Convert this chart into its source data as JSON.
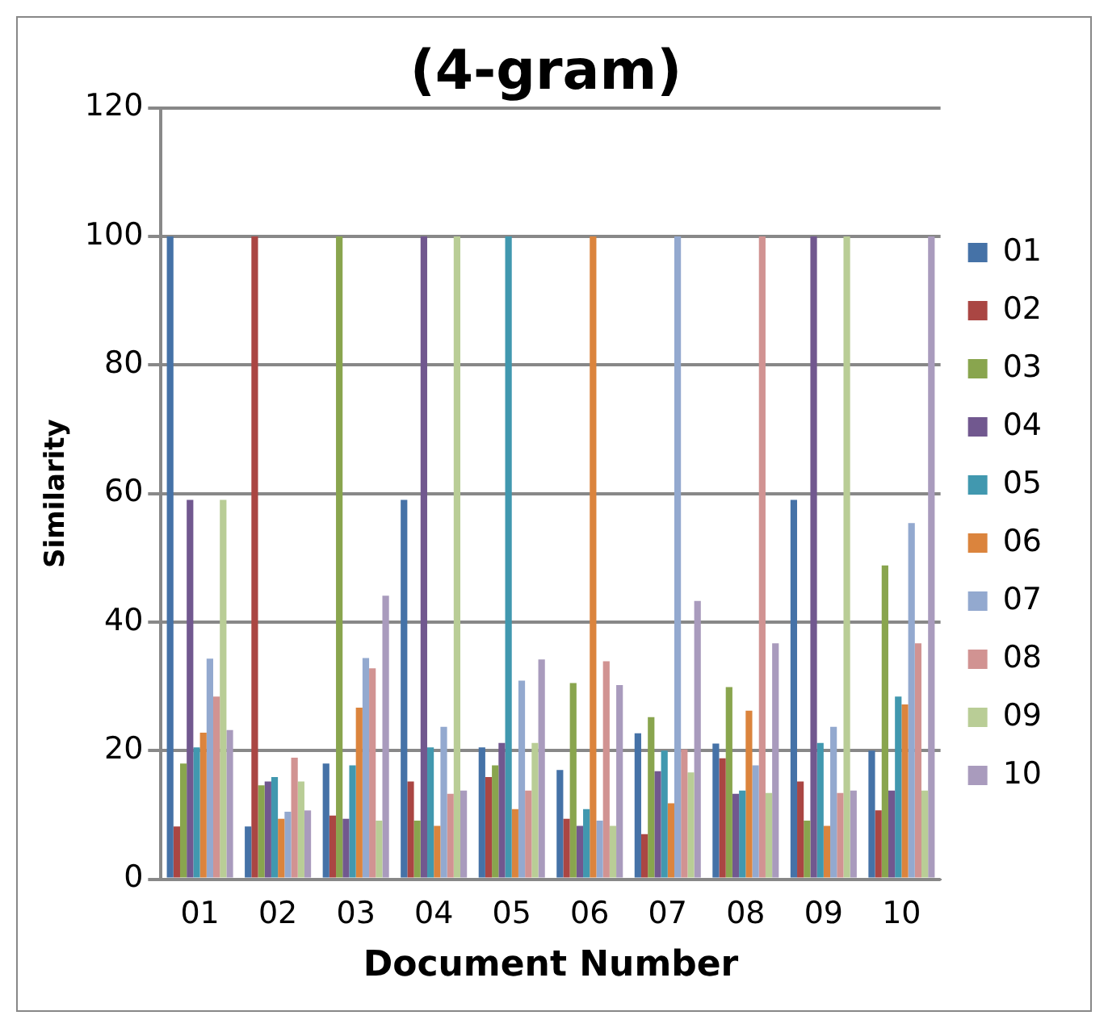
{
  "chart_data": {
    "type": "bar",
    "title": "(4-gram)",
    "xlabel": "Document Number",
    "ylabel": "Similarity",
    "categories": [
      "01",
      "02",
      "03",
      "04",
      "05",
      "06",
      "07",
      "08",
      "09",
      "10"
    ],
    "ylim": [
      0,
      120
    ],
    "yticks": [
      0,
      20,
      40,
      60,
      80,
      100,
      120
    ],
    "grid": "y",
    "legend": "right",
    "series": [
      {
        "name": "01",
        "color": "#4572a7",
        "values": [
          100,
          8.2,
          18,
          59,
          20.5,
          17,
          22.7,
          21.1,
          59,
          20
        ]
      },
      {
        "name": "02",
        "color": "#aa4643",
        "values": [
          8.2,
          100,
          9.9,
          15.2,
          15.9,
          9.4,
          7,
          18.8,
          15.2,
          10.7
        ]
      },
      {
        "name": "03",
        "color": "#89a54e",
        "values": [
          18,
          14.6,
          100,
          9.1,
          17.7,
          30.5,
          25.2,
          29.9,
          9.1,
          48.8
        ]
      },
      {
        "name": "04",
        "color": "#71588f",
        "values": [
          59,
          15.2,
          9.4,
          100,
          21.2,
          8.3,
          16.8,
          13.3,
          100,
          13.8
        ]
      },
      {
        "name": "05",
        "color": "#4198af",
        "values": [
          20.5,
          15.9,
          17.7,
          20.5,
          100,
          10.9,
          20,
          13.8,
          21.2,
          28.4
        ]
      },
      {
        "name": "06",
        "color": "#db843d",
        "values": [
          22.8,
          9.4,
          26.7,
          8.3,
          10.9,
          100,
          11.8,
          26.2,
          8.3,
          27.2
        ]
      },
      {
        "name": "07",
        "color": "#93a9cf",
        "values": [
          34.3,
          10.5,
          34.4,
          23.7,
          30.9,
          9.1,
          100,
          17.7,
          23.7,
          55.4
        ]
      },
      {
        "name": "08",
        "color": "#d19392",
        "values": [
          28.4,
          18.9,
          32.8,
          13.3,
          13.8,
          33.9,
          20.2,
          100,
          13.4,
          36.7
        ]
      },
      {
        "name": "09",
        "color": "#b9cd96",
        "values": [
          59,
          15.2,
          9.1,
          100,
          21.2,
          8.3,
          16.6,
          13.4,
          100,
          13.8
        ]
      },
      {
        "name": "10",
        "color": "#a99bbd",
        "values": [
          23.2,
          10.7,
          44.1,
          13.8,
          34.2,
          30.2,
          43.3,
          36.7,
          13.8,
          100
        ]
      }
    ]
  }
}
